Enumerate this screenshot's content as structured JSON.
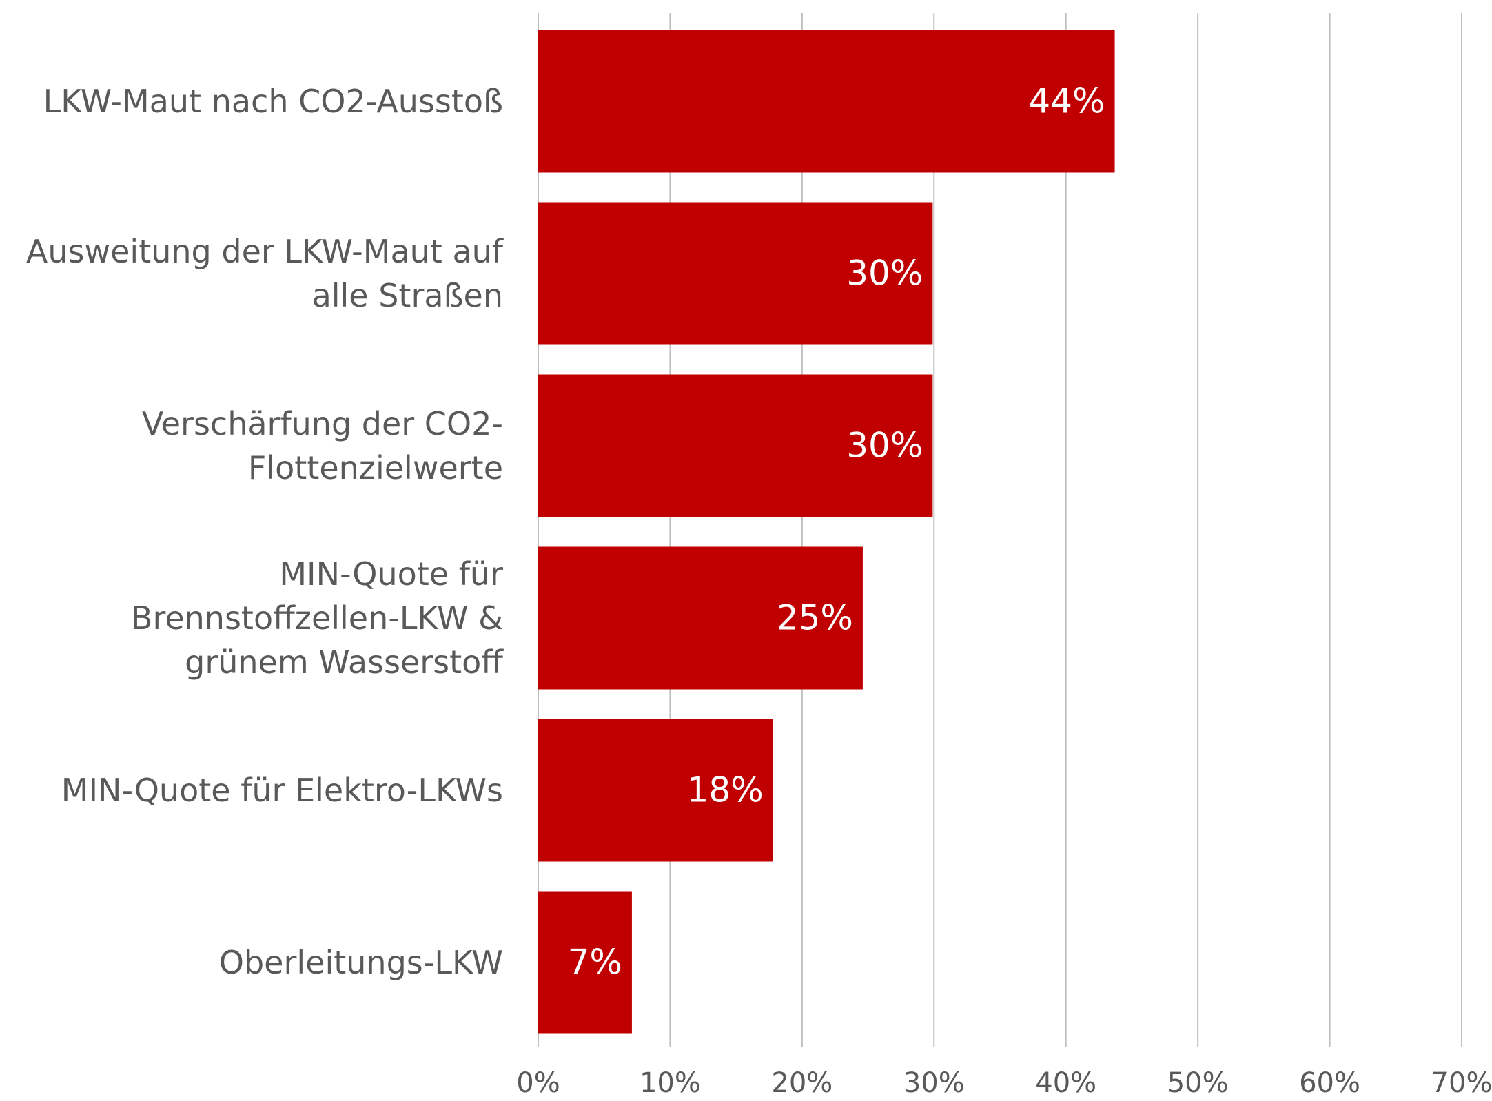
{
  "chart_data": {
    "type": "bar",
    "orientation": "horizontal",
    "categories": [
      "LKW-Maut nach CO2-Ausstoß",
      "Ausweitung der LKW-Maut auf alle Straßen",
      "Verschärfung der CO2-Flottenzielwerte",
      "MIN-Quote für Brennstoffzellen-LKW & grünem Wasserstoff",
      "MIN-Quote für Elektro-LKWs",
      "Oberleitungs-LKW"
    ],
    "values": [
      43.7,
      29.9,
      29.9,
      24.6,
      17.8,
      7.1
    ],
    "value_labels": [
      "44%",
      "30%",
      "30%",
      "25%",
      "18%",
      "7%"
    ],
    "color": "#c00000",
    "xlim": [
      0,
      70
    ],
    "xticks": [
      {
        "value": 0,
        "label": "0%"
      },
      {
        "value": 10,
        "label": "10%"
      },
      {
        "value": 20,
        "label": "20%"
      },
      {
        "value": 30,
        "label": "30%"
      },
      {
        "value": 40,
        "label": "40%"
      },
      {
        "value": 50,
        "label": "50%"
      },
      {
        "value": 60,
        "label": "60%"
      },
      {
        "value": 70,
        "label": "70%"
      }
    ],
    "grid": true
  }
}
